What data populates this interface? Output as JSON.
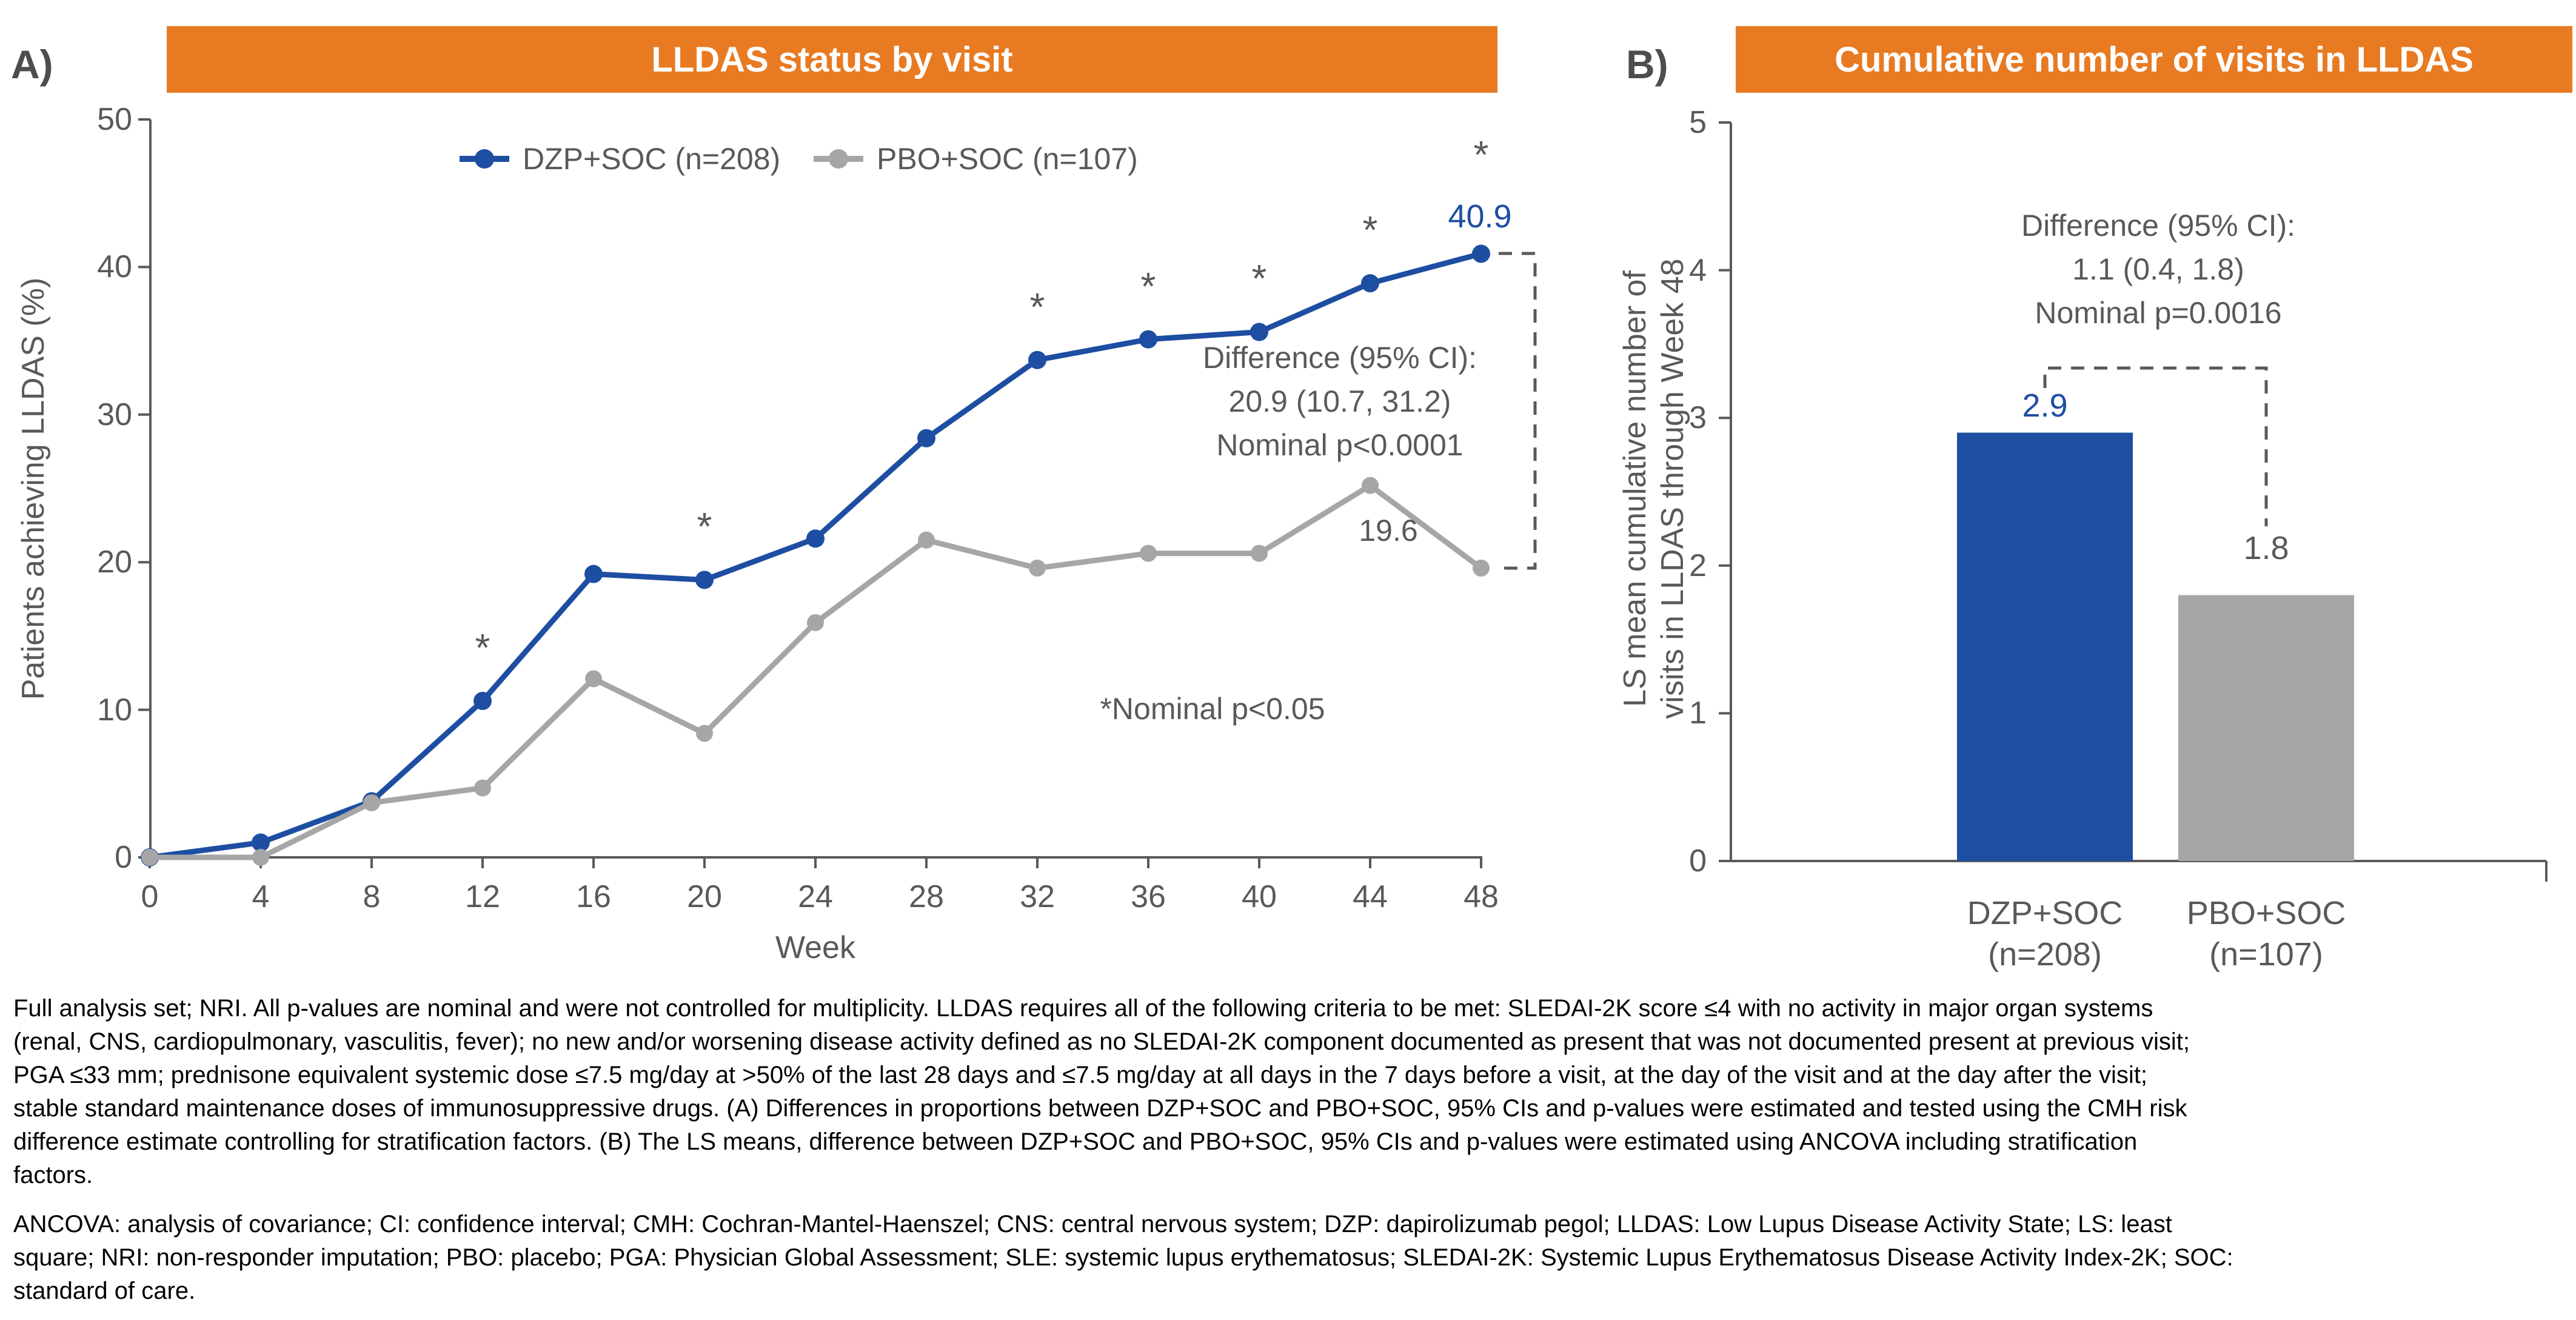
{
  "colors": {
    "orange": "#e87a22",
    "blue": "#1d4ea1",
    "gray": "#a6a6a6",
    "axis_gray": "#595959",
    "panel_letter_gray": "#4d4d4d"
  },
  "panel_a": {
    "letter": "A)",
    "title": "LLDAS status by visit",
    "y_axis_title": "Patients achieving LLDAS (%)",
    "x_axis_title": "Week",
    "legend": [
      {
        "label": "DZP+SOC (n=208)"
      },
      {
        "label": "PBO+SOC (n=107)"
      }
    ],
    "annotation_lines": [
      "Difference (95% CI):",
      "20.9 (10.7, 31.2)",
      "Nominal p<0.0001"
    ],
    "dzp_week48_label": "40.9",
    "pbo_week48_label": "19.6",
    "significance_note": "*Nominal p<0.05"
  },
  "panel_b": {
    "letter": "B)",
    "title": "Cumulative number of visits in LLDAS",
    "y_axis_title_lines": [
      "LS mean cumulative number of",
      "visits in LLDAS through Week 48"
    ],
    "annotation_lines": [
      "Difference (95% CI):",
      "1.1 (0.4, 1.8)",
      "Nominal p=0.0016"
    ],
    "bar_value_labels": [
      "2.9",
      "1.8"
    ]
  },
  "chart_data": [
    {
      "type": "line",
      "title": "LLDAS status by visit",
      "xlabel": "Week",
      "ylabel": "Patients achieving LLDAS (%)",
      "x": [
        0,
        4,
        8,
        12,
        16,
        20,
        24,
        28,
        32,
        36,
        40,
        44,
        48
      ],
      "ylim": [
        0,
        50
      ],
      "yticks": [
        0,
        10,
        20,
        30,
        40,
        50
      ],
      "grid": false,
      "legend_position": "top",
      "series": [
        {
          "name": "DZP+SOC (n=208)",
          "color": "#1d4ea1",
          "values": [
            0,
            1.0,
            3.8,
            10.6,
            19.2,
            18.8,
            21.6,
            28.4,
            33.7,
            35.1,
            35.6,
            38.9,
            40.9
          ]
        },
        {
          "name": "PBO+SOC (n=107)",
          "color": "#a6a6a6",
          "values": [
            0,
            0,
            3.7,
            4.7,
            12.1,
            8.4,
            15.9,
            21.5,
            19.6,
            20.6,
            20.6,
            25.2,
            19.6
          ]
        }
      ],
      "significant_weeks": [
        12,
        20,
        32,
        36,
        40,
        44,
        48
      ],
      "annotations": {
        "difference": "20.9 (10.7, 31.2)",
        "p_value": "Nominal p<0.0001",
        "week48_values": {
          "DZP+SOC": 40.9,
          "PBO+SOC": 19.6
        },
        "significance_note": "*Nominal p<0.05"
      }
    },
    {
      "type": "bar",
      "title": "Cumulative number of visits in LLDAS",
      "ylabel": "LS mean cumulative number of visits in LLDAS through Week 48",
      "categories": [
        "DZP+SOC (n=208)",
        "PBO+SOC (n=107)"
      ],
      "category_lines": [
        [
          "DZP+SOC",
          "(n=208)"
        ],
        [
          "PBO+SOC",
          "(n=107)"
        ]
      ],
      "values": [
        2.9,
        1.8
      ],
      "colors": [
        "#1d4ea1",
        "#a6a6a6"
      ],
      "ylim": [
        0,
        5
      ],
      "yticks": [
        0,
        1,
        2,
        3,
        4,
        5
      ],
      "grid": false,
      "annotations": {
        "difference": "1.1 (0.4, 1.8)",
        "p_value": "Nominal p=0.0016"
      }
    }
  ],
  "footnotes": {
    "para1_lines": [
      "Full analysis set; NRI. All p-values are nominal and were not controlled for multiplicity. LLDAS requires all of the following criteria to be met: SLEDAI-2K score ≤4 with no activity in major organ systems",
      "(renal, CNS, cardiopulmonary, vasculitis, fever); no new and/or worsening disease activity defined as no SLEDAI-2K component documented as present that was not documented present at previous visit;",
      "PGA ≤33 mm; prednisone equivalent systemic dose ≤7.5 mg/day at >50% of the last 28 days and ≤7.5 mg/day at all days in the 7 days before a visit, at the day of the visit and at the day after the visit;",
      "stable standard maintenance doses of immunosuppressive drugs. (A) Differences in proportions between DZP+SOC and PBO+SOC, 95% CIs and p-values were estimated and tested using the CMH risk",
      "difference estimate controlling for stratification factors. (B) The LS means, difference between DZP+SOC and PBO+SOC, 95% CIs and p-values were estimated using ANCOVA including stratification",
      "factors."
    ],
    "para2_lines": [
      "ANCOVA: analysis of covariance; CI: confidence interval; CMH: Cochran-Mantel-Haenszel; CNS: central nervous system; DZP: dapirolizumab pegol; LLDAS: Low Lupus Disease Activity State; LS: least",
      "square; NRI: non-responder imputation; PBO: placebo; PGA: Physician Global Assessment; SLE: systemic lupus erythematosus; SLEDAI-2K: Systemic Lupus Erythematosus Disease Activity Index-2K; SOC:",
      "standard of care."
    ]
  }
}
